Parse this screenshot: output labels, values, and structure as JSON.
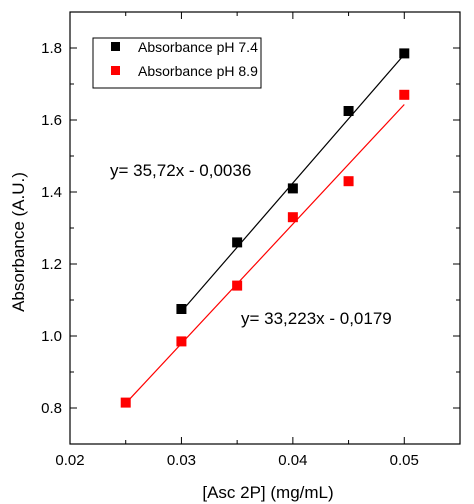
{
  "colors": {
    "series_1": "#000000",
    "series_2": "#ff0000",
    "axis": "#000000",
    "background": "#ffffff"
  },
  "chart_data": {
    "type": "scatter",
    "title": "",
    "xlabel": "[Asc 2P] (mg/mL)",
    "ylabel": "Absorbance (A.U.)",
    "xlim": [
      0.02,
      0.055
    ],
    "ylim": [
      0.7,
      1.9
    ],
    "xticks": [
      0.02,
      0.03,
      0.04,
      0.05
    ],
    "xtick_labels": [
      "0.02",
      "0.03",
      "0.04",
      "0.05"
    ],
    "yticks": [
      0.8,
      1.0,
      1.2,
      1.4,
      1.6,
      1.8
    ],
    "ytick_labels": [
      "0.8",
      "1.0",
      "1.2",
      "1.4",
      "1.6",
      "1.8"
    ],
    "grid": false,
    "legend_position": "top-left",
    "series": [
      {
        "name": "Absorbance pH 7.4",
        "color": "#000000",
        "marker": "square",
        "x": [
          0.03,
          0.035,
          0.04,
          0.045,
          0.05
        ],
        "y": [
          1.075,
          1.26,
          1.41,
          1.625,
          1.785
        ],
        "fit": {
          "x": [
            0.03,
            0.05
          ],
          "y": [
            1.068,
            1.782
          ]
        }
      },
      {
        "name": "Absorbance pH 8.9",
        "color": "#ff0000",
        "marker": "square",
        "x": [
          0.025,
          0.03,
          0.035,
          0.04,
          0.045,
          0.05
        ],
        "y": [
          0.815,
          0.985,
          1.14,
          1.33,
          1.43,
          1.67
        ],
        "fit": {
          "x": [
            0.025,
            0.05
          ],
          "y": [
            0.813,
            1.643
          ]
        }
      }
    ],
    "annotations": [
      {
        "text": "y= 35,72x - 0,0036",
        "series": 0
      },
      {
        "text": "y= 33,223x - 0,0179",
        "series": 1
      }
    ]
  }
}
